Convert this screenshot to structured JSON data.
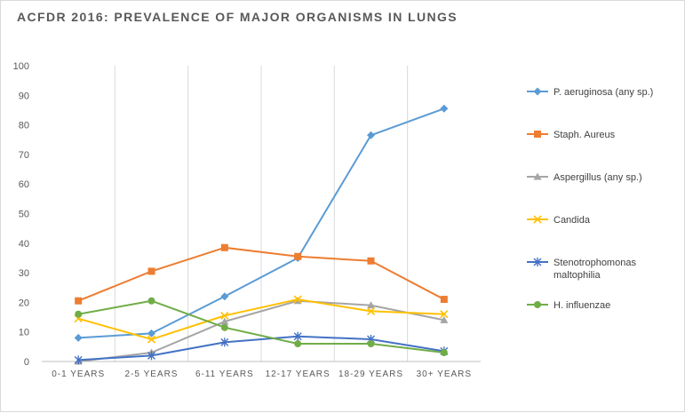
{
  "chart_data": {
    "type": "line",
    "title": "ACFDR 2016: PREVALENCE OF MAJOR ORGANISMS IN LUNGS",
    "xlabel": "",
    "ylabel": "",
    "categories": [
      "0-1 YEARS",
      "2-5 YEARS",
      "6-11 YEARS",
      "12-17 YEARS",
      "18-29 YEARS",
      "30+ YEARS"
    ],
    "ylim": [
      0,
      100
    ],
    "yticks": [
      0,
      10,
      20,
      30,
      40,
      50,
      60,
      70,
      80,
      90,
      100
    ],
    "grid": "vertical",
    "legend_position": "right",
    "series": [
      {
        "name": "P. aeruginosa (any sp.)",
        "color": "#5B9BD5",
        "marker": "diamond",
        "values": [
          8,
          9.5,
          22,
          35,
          76.5,
          85.5
        ]
      },
      {
        "name": "Staph. Aureus",
        "color": "#ED7D31",
        "marker": "square",
        "values": [
          20.5,
          30.5,
          38.5,
          35.5,
          34,
          21
        ]
      },
      {
        "name": "Aspergillus (any sp.)",
        "color": "#A5A5A5",
        "marker": "triangle",
        "values": [
          0,
          3,
          13.5,
          20.5,
          19,
          14
        ]
      },
      {
        "name": "Candida",
        "color": "#FFC000",
        "marker": "x",
        "values": [
          14.5,
          7.5,
          15.5,
          21,
          17,
          16
        ]
      },
      {
        "name": "Stenotrophomonas maltophilia",
        "legend_lines": [
          "Stenotrophomonas",
          "maltophilia"
        ],
        "color": "#4472C4",
        "marker": "star",
        "values": [
          0.5,
          2,
          6.5,
          8.5,
          7.5,
          3.5
        ]
      },
      {
        "name": "H. influenzae",
        "color": "#70AD47",
        "marker": "circle",
        "values": [
          16,
          20.5,
          11.5,
          6,
          6,
          3
        ]
      }
    ]
  }
}
